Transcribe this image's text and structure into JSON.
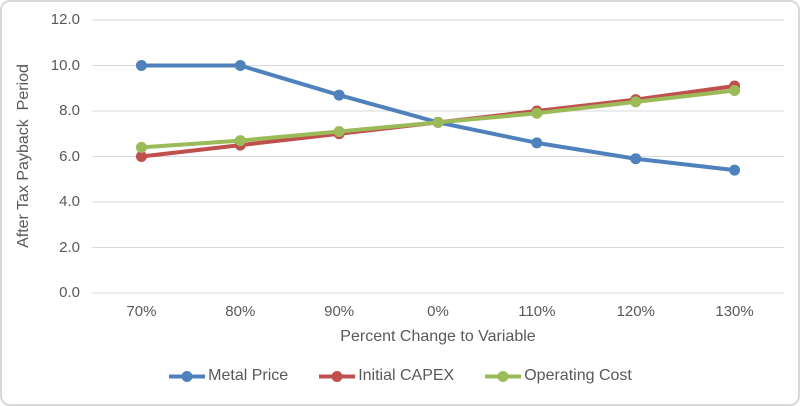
{
  "chart": {
    "background": "#FFFFFF",
    "border_color": "#D9D9D9",
    "gridline_color": "#D9D9D9",
    "text_color": "#595959"
  },
  "chart_data": {
    "type": "line",
    "title": "",
    "xlabel": "Percent Change to Variable",
    "ylabel": "After Tax Payback  Period",
    "categories": [
      "70%",
      "80%",
      "90%",
      "0%",
      "110%",
      "120%",
      "130%"
    ],
    "series": [
      {
        "name": "Metal Price",
        "color": "#4F81BD",
        "values": [
          10.0,
          10.0,
          8.7,
          7.5,
          6.6,
          5.9,
          5.4
        ]
      },
      {
        "name": "Initial CAPEX",
        "color": "#C0504D",
        "values": [
          6.0,
          6.5,
          7.0,
          7.5,
          8.0,
          8.5,
          9.1
        ]
      },
      {
        "name": "Operating Cost",
        "color": "#9BBB59",
        "values": [
          6.4,
          6.7,
          7.1,
          7.5,
          7.9,
          8.4,
          8.9
        ]
      }
    ],
    "ylim": [
      0,
      12
    ],
    "ytick_step": 2,
    "ytick_labels": [
      "0.0",
      "2.0",
      "4.0",
      "6.0",
      "8.0",
      "10.0",
      "12.0"
    ],
    "grid": true,
    "legend_position": "bottom",
    "marker": "circle"
  }
}
